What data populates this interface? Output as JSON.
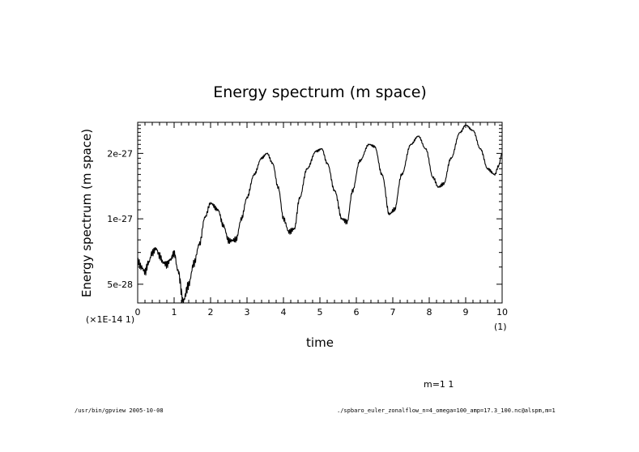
{
  "chart_data": {
    "type": "line",
    "title": "Energy spectrum (m space)",
    "xlabel": "time",
    "ylabel": "Energy spectrum (m space)",
    "x_scale_note": "(1)",
    "y_scale_note": "(×1E-14 1)",
    "legend_label": "m=1 1",
    "xlim": [
      0,
      10
    ],
    "ylim": [
      4.1e-28,
      2.78e-27
    ],
    "y_scale": "log",
    "x_ticks": [
      {
        "v": 0,
        "label": "0"
      },
      {
        "v": 1,
        "label": "1"
      },
      {
        "v": 2,
        "label": "2"
      },
      {
        "v": 3,
        "label": "3"
      },
      {
        "v": 4,
        "label": "4"
      },
      {
        "v": 5,
        "label": "5"
      },
      {
        "v": 6,
        "label": "6"
      },
      {
        "v": 7,
        "label": "7"
      },
      {
        "v": 8,
        "label": "8"
      },
      {
        "v": 9,
        "label": "9"
      },
      {
        "v": 10,
        "label": "10"
      }
    ],
    "y_ticks": [
      {
        "v": 5e-28,
        "label": "5e-28"
      },
      {
        "v": 1e-27,
        "label": "1e-27"
      },
      {
        "v": 2e-27,
        "label": "2e-27"
      }
    ],
    "series": [
      {
        "name": "m=1 1",
        "noise_amplitude": 3e-29,
        "points": [
          [
            0.0,
            6.4e-28
          ],
          [
            0.1,
            6e-28
          ],
          [
            0.2,
            5.7e-28
          ],
          [
            0.3,
            6.3e-28
          ],
          [
            0.4,
            7e-28
          ],
          [
            0.5,
            7.3e-28
          ],
          [
            0.6,
            6.8e-28
          ],
          [
            0.7,
            6.3e-28
          ],
          [
            0.8,
            6.2e-28
          ],
          [
            0.9,
            6.5e-28
          ],
          [
            1.0,
            7e-28
          ],
          [
            1.1,
            5.8e-28
          ],
          [
            1.25,
            4.2e-28
          ],
          [
            1.4,
            5e-28
          ],
          [
            1.55,
            6.3e-28
          ],
          [
            1.7,
            7.7e-28
          ],
          [
            1.85,
            1.02e-27
          ],
          [
            2.0,
            1.18e-27
          ],
          [
            2.2,
            1.1e-27
          ],
          [
            2.35,
            9.3e-28
          ],
          [
            2.5,
            7.9e-28
          ],
          [
            2.7,
            8e-28
          ],
          [
            2.85,
            1e-27
          ],
          [
            3.0,
            1.25e-27
          ],
          [
            3.2,
            1.6e-27
          ],
          [
            3.4,
            1.9e-27
          ],
          [
            3.55,
            2e-27
          ],
          [
            3.7,
            1.8e-27
          ],
          [
            3.85,
            1.4e-27
          ],
          [
            4.0,
            1e-27
          ],
          [
            4.15,
            8.7e-28
          ],
          [
            4.3,
            9e-28
          ],
          [
            4.45,
            1.25e-27
          ],
          [
            4.65,
            1.7e-27
          ],
          [
            4.9,
            2.05e-27
          ],
          [
            5.05,
            2.1e-27
          ],
          [
            5.2,
            1.8e-27
          ],
          [
            5.4,
            1.35e-27
          ],
          [
            5.6,
            1e-27
          ],
          [
            5.75,
            9.7e-28
          ],
          [
            5.9,
            1.35e-27
          ],
          [
            6.1,
            1.85e-27
          ],
          [
            6.35,
            2.2e-27
          ],
          [
            6.5,
            2.15e-27
          ],
          [
            6.7,
            1.6e-27
          ],
          [
            6.9,
            1.05e-27
          ],
          [
            7.05,
            1.1e-27
          ],
          [
            7.25,
            1.6e-27
          ],
          [
            7.5,
            2.2e-27
          ],
          [
            7.7,
            2.4e-27
          ],
          [
            7.9,
            2.1e-27
          ],
          [
            8.1,
            1.55e-27
          ],
          [
            8.25,
            1.4e-27
          ],
          [
            8.4,
            1.45e-27
          ],
          [
            8.6,
            1.9e-27
          ],
          [
            8.85,
            2.5e-27
          ],
          [
            9.0,
            2.7e-27
          ],
          [
            9.2,
            2.55e-27
          ],
          [
            9.4,
            2.1e-27
          ],
          [
            9.6,
            1.7e-27
          ],
          [
            9.8,
            1.6e-27
          ],
          [
            9.9,
            1.75e-27
          ],
          [
            10.0,
            2e-27
          ]
        ]
      }
    ]
  },
  "footer": {
    "left": "/usr/bin/gpview  2005-10-08",
    "right": "./spbaro_euler_zonalflow_n=4_omega=100_amp=17.3_100.nc@alspm,m=1"
  }
}
